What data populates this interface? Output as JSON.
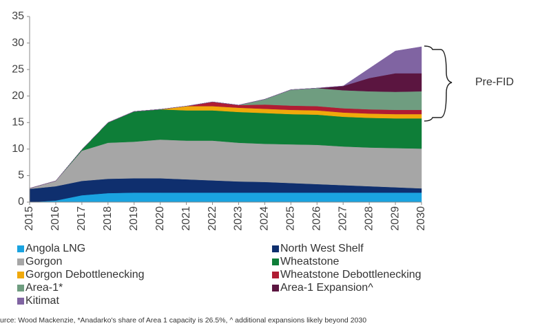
{
  "chart_data": {
    "type": "stacked_area",
    "categories": [
      "2015",
      "2016",
      "2017",
      "2018",
      "2019",
      "2020",
      "2021",
      "2022",
      "2023",
      "2024",
      "2025",
      "2026",
      "2027",
      "2028",
      "2029",
      "2030"
    ],
    "series": [
      {
        "name": "Angola LNG",
        "color": "#1aa3e0",
        "values": [
          0,
          0.3,
          1.3,
          1.7,
          1.8,
          1.8,
          1.8,
          1.8,
          1.8,
          1.8,
          1.8,
          1.8,
          1.8,
          1.8,
          1.8,
          1.8
        ]
      },
      {
        "name": "North West Shelf",
        "color": "#0f2f6e",
        "values": [
          2.5,
          2.7,
          2.7,
          2.7,
          2.7,
          2.7,
          2.5,
          2.3,
          2.1,
          2.0,
          1.8,
          1.6,
          1.4,
          1.2,
          1.0,
          0.8
        ]
      },
      {
        "name": "Gorgon",
        "color": "#a6a6a6",
        "values": [
          0.1,
          1.0,
          5.7,
          6.8,
          6.9,
          7.3,
          7.3,
          7.5,
          7.3,
          7.2,
          7.3,
          7.4,
          7.3,
          7.3,
          7.4,
          7.5
        ]
      },
      {
        "name": "Wheatstone",
        "color": "#0e7e38",
        "values": [
          0,
          0,
          0.2,
          3.8,
          5.7,
          5.7,
          5.7,
          5.7,
          5.8,
          5.8,
          5.7,
          5.7,
          5.6,
          5.6,
          5.6,
          5.7
        ]
      },
      {
        "name": "Gorgon Debottlenecking",
        "color": "#f0a90b",
        "values": [
          0,
          0,
          0,
          0,
          0,
          0,
          0.8,
          0.8,
          0.8,
          0.8,
          0.8,
          0.8,
          0.8,
          0.8,
          0.8,
          0.8
        ]
      },
      {
        "name": "Wheatstone Debottlenecking",
        "color": "#b01c33",
        "values": [
          0,
          0,
          0,
          0,
          0,
          0,
          0,
          0.8,
          0.5,
          0.8,
          0.8,
          0.8,
          0.8,
          0.8,
          0.8,
          0.8
        ]
      },
      {
        "name": "Area-1*",
        "color": "#6f9d80",
        "values": [
          0,
          0,
          0,
          0,
          0,
          0,
          0,
          0,
          0,
          1.0,
          3.0,
          3.4,
          3.4,
          3.4,
          3.4,
          3.5
        ]
      },
      {
        "name": "Area-1 Expansion^",
        "color": "#5b1540",
        "values": [
          0,
          0,
          0,
          0,
          0,
          0,
          0,
          0,
          0,
          0,
          0,
          0,
          0.8,
          2.5,
          3.5,
          3.4
        ]
      },
      {
        "name": "Kitimat",
        "color": "#8064a2",
        "values": [
          0,
          0,
          0,
          0,
          0,
          0,
          0,
          0,
          0,
          0,
          0,
          0,
          0,
          1.8,
          4.2,
          5.0
        ]
      }
    ],
    "ylim": [
      0,
      35
    ],
    "yticks": [
      0,
      5,
      10,
      15,
      20,
      25,
      30,
      35
    ],
    "annotation": "Pre-FID",
    "footnote": "urce: Wood Mackenzie, *Anadarko's share of Area 1 capacity is 26.5%, ^ additional expansions likely beyond 2030"
  }
}
